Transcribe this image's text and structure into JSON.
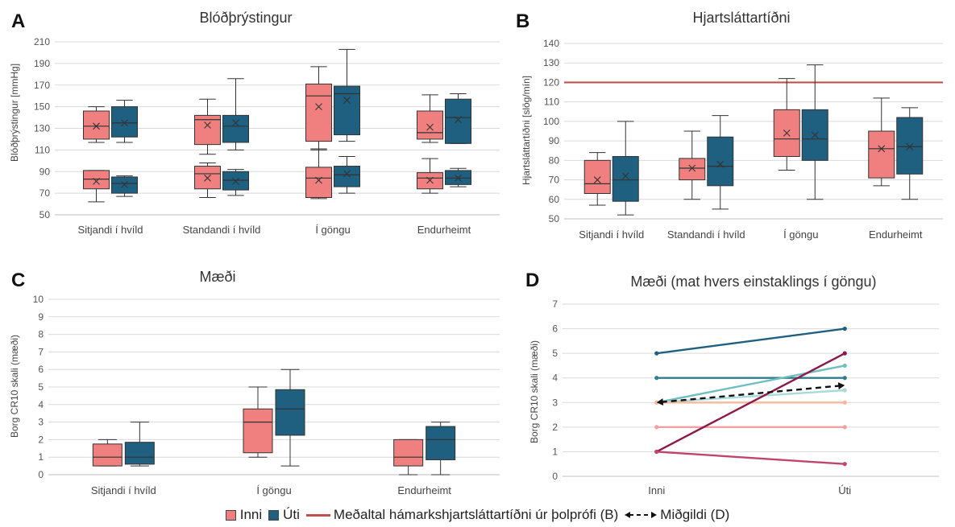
{
  "colors": {
    "inni": "#f08080",
    "uti": "#1f5f7f",
    "box_border": "#333333",
    "ref_line": "#c0504d",
    "median_line": "#111111"
  },
  "legend": {
    "inni": "Inni",
    "uti": "Úti",
    "ref": "Meðaltal hámarkshjartsláttartíðni úr þolprófi (B)",
    "median": "Miðgildi (D)"
  },
  "chart_data": [
    {
      "panel": "A",
      "type": "box",
      "title": "Blóðþrýstingur",
      "ylabel": "Blóðþrýstingur [mmHg]",
      "ylim": [
        50,
        210
      ],
      "yticks": [
        50,
        70,
        90,
        110,
        130,
        150,
        170,
        190,
        210
      ],
      "grid": true,
      "categories": [
        "Sitjandi í hvíld",
        "Standandi í hvíld",
        "Í göngu",
        "Endurheimt"
      ],
      "series": [
        {
          "key": "inni",
          "boxes": [
            {
              "min": 117,
              "q1": 120,
              "median": 132,
              "q3": 146,
              "max": 150,
              "mean": 132
            },
            {
              "min": 106,
              "q1": 115,
              "median": 138,
              "q3": 142,
              "max": 157,
              "mean": 133
            },
            {
              "min": 110,
              "q1": 118,
              "median": 160,
              "q3": 171,
              "max": 187,
              "mean": 150
            },
            {
              "min": 117,
              "q1": 120,
              "median": 126,
              "q3": 146,
              "max": 161,
              "mean": 131
            },
            {
              "min": 62,
              "q1": 74,
              "median": 83,
              "q3": 91,
              "max": 91,
              "mean": 81
            },
            {
              "min": 66,
              "q1": 74,
              "median": 88,
              "q3": 95,
              "max": 98,
              "mean": 84
            },
            {
              "min": 65,
              "q1": 66,
              "median": 84,
              "q3": 94,
              "max": 111,
              "mean": 82
            },
            {
              "min": 70,
              "q1": 74,
              "median": 84,
              "q3": 89,
              "max": 102,
              "mean": 82
            }
          ]
        },
        {
          "key": "uti",
          "boxes": [
            {
              "min": 117,
              "q1": 122,
              "median": 135,
              "q3": 150,
              "max": 156,
              "mean": 135
            },
            {
              "min": 110,
              "q1": 117,
              "median": 132,
              "q3": 142,
              "max": 176,
              "mean": 135
            },
            {
              "min": 118,
              "q1": 124,
              "median": 162,
              "q3": 169,
              "max": 203,
              "mean": 156
            },
            {
              "min": 116,
              "q1": 116,
              "median": 140,
              "q3": 157,
              "max": 162,
              "mean": 138
            },
            {
              "min": 67,
              "q1": 70,
              "median": 79,
              "q3": 85,
              "max": 86,
              "mean": 78
            },
            {
              "min": 68,
              "q1": 73,
              "median": 82,
              "q3": 90,
              "max": 92,
              "mean": 81
            },
            {
              "min": 70,
              "q1": 76,
              "median": 87,
              "q3": 95,
              "max": 104,
              "mean": 88
            },
            {
              "min": 76,
              "q1": 78,
              "median": 84,
              "q3": 91,
              "max": 93,
              "mean": 84
            }
          ]
        }
      ],
      "box_categories": [
        0,
        1,
        2,
        3,
        0,
        1,
        2,
        3
      ]
    },
    {
      "panel": "B",
      "type": "box",
      "title": "Hjartsláttartíðni",
      "ylabel": "Hjartsláttartíðni [slög/mín]",
      "ylim": [
        50,
        140
      ],
      "yticks": [
        50,
        60,
        70,
        80,
        90,
        100,
        110,
        120,
        130,
        140
      ],
      "grid": true,
      "categories": [
        "Sitjandi í hvíld",
        "Standandi í hvíld",
        "Í göngu",
        "Endurheimt"
      ],
      "reference_line": 120,
      "series": [
        {
          "key": "inni",
          "boxes": [
            {
              "min": 57,
              "q1": 63,
              "median": 68,
              "q3": 80,
              "max": 84,
              "mean": 70
            },
            {
              "min": 60,
              "q1": 70,
              "median": 76,
              "q3": 81,
              "max": 95,
              "mean": 76
            },
            {
              "min": 75,
              "q1": 82,
              "median": 91,
              "q3": 106,
              "max": 122,
              "mean": 94
            },
            {
              "min": 67,
              "q1": 71,
              "median": 86,
              "q3": 95,
              "max": 112,
              "mean": 86
            }
          ]
        },
        {
          "key": "uti",
          "boxes": [
            {
              "min": 52,
              "q1": 59,
              "median": 70,
              "q3": 82,
              "max": 100,
              "mean": 72
            },
            {
              "min": 55,
              "q1": 67,
              "median": 77,
              "q3": 92,
              "max": 103,
              "mean": 78
            },
            {
              "min": 60,
              "q1": 80,
              "median": 91,
              "q3": 106,
              "max": 129,
              "mean": 93
            },
            {
              "min": 60,
              "q1": 73,
              "median": 87,
              "q3": 102,
              "max": 107,
              "mean": 87
            }
          ]
        }
      ],
      "box_categories": [
        0,
        1,
        2,
        3
      ]
    },
    {
      "panel": "C",
      "type": "box",
      "title": "Mæði",
      "ylabel": "Borg CR10 skali (mæði)",
      "ylim": [
        0,
        10
      ],
      "yticks": [
        0,
        1,
        2,
        3,
        4,
        5,
        6,
        7,
        8,
        9,
        10
      ],
      "grid": true,
      "categories": [
        "Sitjandi í hvíld",
        "Í göngu",
        "Endurheimt"
      ],
      "series": [
        {
          "key": "inni",
          "boxes": [
            {
              "min": 0.5,
              "q1": 0.5,
              "median": 1,
              "q3": 1.75,
              "max": 2
            },
            {
              "min": 1,
              "q1": 1.25,
              "median": 3,
              "q3": 3.75,
              "max": 5
            },
            {
              "min": 0,
              "q1": 0.5,
              "median": 1,
              "q3": 2,
              "max": 2
            }
          ]
        },
        {
          "key": "uti",
          "boxes": [
            {
              "min": 0.5,
              "q1": 0.6,
              "median": 1,
              "q3": 1.85,
              "max": 3
            },
            {
              "min": 0.5,
              "q1": 2.25,
              "median": 3.75,
              "q3": 4.85,
              "max": 6
            },
            {
              "min": 0,
              "q1": 0.85,
              "median": 2,
              "q3": 2.75,
              "max": 3
            }
          ]
        }
      ],
      "box_categories": [
        0,
        1,
        2
      ]
    },
    {
      "panel": "D",
      "type": "line",
      "title": "Mæði (mat hvers einstaklings í göngu)",
      "ylabel": "Borg CR10 skali (mæði)",
      "ylim": [
        0,
        7
      ],
      "yticks": [
        0,
        1,
        2,
        3,
        4,
        5,
        6,
        7
      ],
      "grid": true,
      "x": [
        "Inni",
        "Úti"
      ],
      "series": [
        {
          "values": [
            5,
            6
          ],
          "color": "#1f5f7f"
        },
        {
          "values": [
            4,
            4
          ],
          "color": "#2e7d90"
        },
        {
          "values": [
            3,
            4.5
          ],
          "color": "#6fbfbf"
        },
        {
          "values": [
            3,
            3.5
          ],
          "color": "#a8dada"
        },
        {
          "values": [
            3,
            3
          ],
          "color": "#f6b99a"
        },
        {
          "values": [
            2,
            2
          ],
          "color": "#f2a0a0"
        },
        {
          "values": [
            1,
            5
          ],
          "color": "#8b1a4a"
        },
        {
          "values": [
            1,
            0.5
          ],
          "color": "#c0446e"
        }
      ],
      "median": [
        3,
        3.7
      ]
    }
  ]
}
